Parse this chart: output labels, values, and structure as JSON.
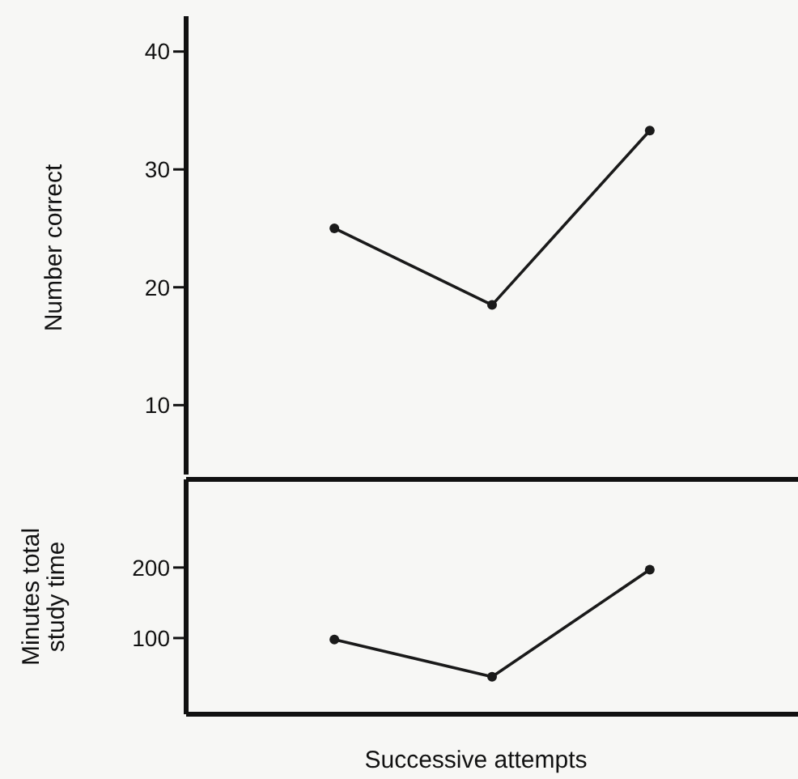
{
  "chart_data": [
    {
      "type": "line",
      "ylabel": "Number correct",
      "categories": [
        null,
        null,
        null
      ],
      "values": [
        25,
        18.5,
        33.3
      ],
      "color": "#1a1a1a",
      "ylim": [
        3.7,
        43
      ],
      "yticks": [
        10,
        20,
        30,
        40
      ],
      "marker": "circle",
      "line_style": "solid",
      "tick_labels": "y",
      "grid": false,
      "legend": false
    },
    {
      "type": "line",
      "ylabel": "Minutes total study time",
      "xlabel": "Successive attempts",
      "categories": [
        null,
        null,
        null
      ],
      "values": [
        98,
        45,
        197
      ],
      "color": "#1a1a1a",
      "ylim": [
        -8,
        325
      ],
      "yticks": [
        100,
        200
      ],
      "marker": "circle",
      "line_style": "solid",
      "tick_labels": "y",
      "grid": false,
      "legend": false
    }
  ]
}
